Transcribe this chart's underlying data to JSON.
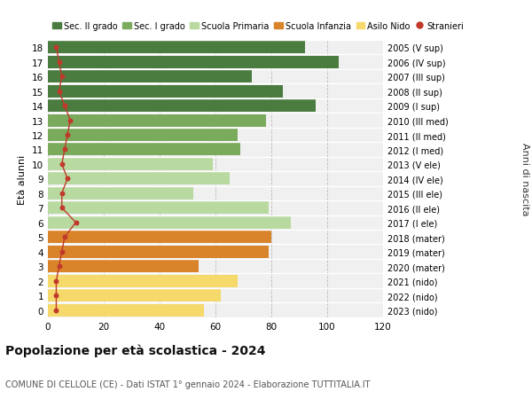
{
  "ages": [
    18,
    17,
    16,
    15,
    14,
    13,
    12,
    11,
    10,
    9,
    8,
    7,
    6,
    5,
    4,
    3,
    2,
    1,
    0
  ],
  "bar_values": [
    92,
    104,
    73,
    84,
    96,
    78,
    68,
    69,
    59,
    65,
    52,
    79,
    87,
    80,
    79,
    54,
    68,
    62,
    56
  ],
  "right_labels": [
    "2005 (V sup)",
    "2006 (IV sup)",
    "2007 (III sup)",
    "2008 (II sup)",
    "2009 (I sup)",
    "2010 (III med)",
    "2011 (II med)",
    "2012 (I med)",
    "2013 (V ele)",
    "2014 (IV ele)",
    "2015 (III ele)",
    "2016 (II ele)",
    "2017 (I ele)",
    "2018 (mater)",
    "2019 (mater)",
    "2020 (mater)",
    "2021 (nido)",
    "2022 (nido)",
    "2023 (nido)"
  ],
  "stranieri_values": [
    3,
    4,
    5,
    4,
    6,
    8,
    7,
    6,
    5,
    7,
    5,
    5,
    10,
    6,
    5,
    4,
    3,
    3,
    3
  ],
  "bar_colors": [
    "#4a7c3f",
    "#4a7c3f",
    "#4a7c3f",
    "#4a7c3f",
    "#4a7c3f",
    "#7aaa5c",
    "#7aaa5c",
    "#7aaa5c",
    "#b8d9a0",
    "#b8d9a0",
    "#b8d9a0",
    "#b8d9a0",
    "#b8d9a0",
    "#d9842a",
    "#d9842a",
    "#d9842a",
    "#f5d96b",
    "#f5d96b",
    "#f5d96b"
  ],
  "legend_labels": [
    "Sec. II grado",
    "Sec. I grado",
    "Scuola Primaria",
    "Scuola Infanzia",
    "Asilo Nido",
    "Stranieri"
  ],
  "legend_colors": [
    "#4a7c3f",
    "#7aaa5c",
    "#b8d9a0",
    "#d9842a",
    "#f5d96b",
    "#c0392b"
  ],
  "ylabel": "Età alunni",
  "right_ylabel": "Anni di nascita",
  "title": "Popolazione per età scolastica - 2024",
  "subtitle": "COMUNE DI CELLOLE (CE) - Dati ISTAT 1° gennaio 2024 - Elaborazione TUTTITALIA.IT",
  "xlim": [
    0,
    120
  ],
  "xticks": [
    0,
    20,
    40,
    60,
    80,
    100,
    120
  ],
  "bg_color": "#ffffff",
  "plot_bg_color": "#f0f0f0",
  "stranieri_color": "#c0392b"
}
